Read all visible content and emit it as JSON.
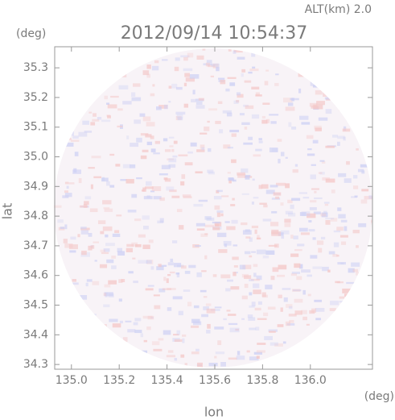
{
  "chart_data": {
    "type": "radar-ppi",
    "title": "2012/09/14 10:54:37",
    "annotation": "ALT(km) 2.0",
    "y_unit": "(deg)",
    "x_unit": "(deg)",
    "xlabel": "lon",
    "ylabel": "lat",
    "xlim": [
      134.93,
      136.26
    ],
    "ylim": [
      34.284,
      35.371
    ],
    "xticks": [
      {
        "value": 135,
        "label": "135.0"
      },
      135.2,
      135.4,
      135.6,
      135.8,
      {
        "value": 136,
        "label": "136.0"
      }
    ],
    "yticks": [
      34.3,
      34.4,
      34.5,
      34.6,
      34.7,
      34.8,
      34.9,
      {
        "value": 35,
        "label": "35.0"
      },
      35.1,
      35.2,
      35.3
    ]
  }
}
